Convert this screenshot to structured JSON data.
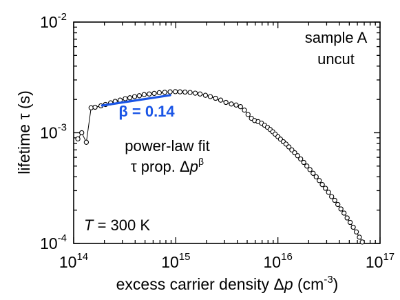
{
  "chart_data": {
    "type": "scatter",
    "x_scale": "log",
    "y_scale": "log",
    "xlim": [
      100000000000000.0,
      1e+17
    ],
    "ylim": [
      0.0001,
      0.01
    ],
    "xlabel": {
      "pre": "excess carrier density Δ",
      "var": "p",
      "post": " (cm",
      "sup": "-3",
      "close": ")"
    },
    "ylabel": "lifetime τ (s)",
    "x_ticks": [
      {
        "value": 100000000000000.0,
        "base": "10",
        "exp": "14"
      },
      {
        "value": 1000000000000000.0,
        "base": "10",
        "exp": "15"
      },
      {
        "value": 1e+16,
        "base": "10",
        "exp": "16"
      },
      {
        "value": 1e+17,
        "base": "10",
        "exp": "17"
      }
    ],
    "y_ticks": [
      {
        "value": 0.0001,
        "base": "10",
        "exp": "-4"
      },
      {
        "value": 0.001,
        "base": "10",
        "exp": "-3"
      },
      {
        "value": 0.01,
        "base": "10",
        "exp": "-2"
      }
    ],
    "grid": false,
    "series": [
      {
        "marker": "open-circle",
        "line": true,
        "color": "#000000",
        "points": [
          [
            110000000000000.0,
            0.00088
          ],
          [
            120000000000000.0,
            0.001
          ],
          [
            133000000000000.0,
            0.00082
          ],
          [
            148000000000000.0,
            0.00168
          ],
          [
            162000000000000.0,
            0.0017
          ],
          [
            185000000000000.0,
            0.00175
          ],
          [
            205000000000000.0,
            0.0018
          ],
          [
            230000000000000.0,
            0.00186
          ],
          [
            255000000000000.0,
            0.00192
          ],
          [
            285000000000000.0,
            0.00197
          ],
          [
            320000000000000.0,
            0.00203
          ],
          [
            355000000000000.0,
            0.00207
          ],
          [
            395000000000000.0,
            0.00212
          ],
          [
            440000000000000.0,
            0.00216
          ],
          [
            490000000000000.0,
            0.00221
          ],
          [
            550000000000000.0,
            0.00224
          ],
          [
            615000000000000.0,
            0.00227
          ],
          [
            690000000000000.0,
            0.0023
          ],
          [
            780000000000000.0,
            0.00232
          ],
          [
            880000000000000.0,
            0.00234
          ],
          [
            990000000000000.0,
            0.00235
          ],
          [
            1100000000000000.0,
            0.00234
          ],
          [
            1230000000000000.0,
            0.00233
          ],
          [
            1380000000000000.0,
            0.00231
          ],
          [
            1550000000000000.0,
            0.00228
          ],
          [
            1730000000000000.0,
            0.00224
          ],
          [
            1950000000000000.0,
            0.00218
          ],
          [
            2180000000000000.0,
            0.00212
          ],
          [
            2450000000000000.0,
            0.00205
          ],
          [
            2750000000000000.0,
            0.00197
          ],
          [
            3100000000000000.0,
            0.00188
          ],
          [
            3500000000000000.0,
            0.00182
          ],
          [
            3900000000000000.0,
            0.00178
          ],
          [
            4300000000000000.0,
            0.00172
          ],
          [
            4700000000000000.0,
            0.0016
          ],
          [
            5100000000000000.0,
            0.00146
          ],
          [
            5500000000000000.0,
            0.00135
          ],
          [
            5900000000000000.0,
            0.00129
          ],
          [
            6400000000000000.0,
            0.00126
          ],
          [
            6900000000000000.0,
            0.00122
          ],
          [
            7400000000000000.0,
            0.00117
          ],
          [
            7900000000000000.0,
            0.00112
          ],
          [
            8400000000000000.0,
            0.00107
          ],
          [
            8900000000000000.0,
            0.00102
          ],
          [
            9400000000000000.0,
            0.00097
          ],
          [
            1e+16,
            0.00092
          ],
          [
            1.06e+16,
            0.000875
          ],
          [
            1.13e+16,
            0.00083
          ],
          [
            1.2e+16,
            0.00079
          ],
          [
            1.28e+16,
            0.000745
          ],
          [
            1.37e+16,
            0.0007
          ],
          [
            1.46e+16,
            0.00066
          ],
          [
            1.56e+16,
            0.00062
          ],
          [
            1.67e+16,
            0.00058
          ],
          [
            1.79e+16,
            0.00054
          ],
          [
            1.92e+16,
            0.0005
          ],
          [
            2.06e+16,
            0.000465
          ],
          [
            2.21e+16,
            0.00043
          ],
          [
            2.37e+16,
            0.0004
          ],
          [
            2.54e+16,
            0.00037
          ],
          [
            2.72e+16,
            0.00034
          ],
          [
            2.92e+16,
            0.000315
          ],
          [
            3.13e+16,
            0.00029
          ],
          [
            3.36e+16,
            0.000265
          ],
          [
            3.6e+16,
            0.000245
          ],
          [
            3.86e+16,
            0.000225
          ],
          [
            4.14e+16,
            0.000205
          ],
          [
            4.44e+16,
            0.000188
          ],
          [
            4.76e+16,
            0.00017
          ],
          [
            5.1e+16,
            0.000155
          ],
          [
            5.47e+16,
            0.00014
          ],
          [
            5.86e+16,
            0.000127
          ],
          [
            6.28e+16,
            0.000114
          ],
          [
            6.7e+16,
            0.000103
          ]
        ]
      },
      {
        "name": "power-law fit",
        "type": "line",
        "color": "#1a55e6",
        "x": [
          190000000000000.0,
          880000000000000.0
        ],
        "formula": "tau ∝ Δp^β",
        "beta": 0.14
      }
    ],
    "annotations": {
      "sample_line1": "sample A",
      "sample_line2": "uncut",
      "beta_label": "β = 0.14",
      "fit_line1": "power-law fit",
      "fit_line2_pre": "τ prop. Δ",
      "fit_line2_var": "p",
      "fit_line2_sup": "β",
      "temp_var": "T",
      "temp_rest": " = 300 K"
    }
  }
}
